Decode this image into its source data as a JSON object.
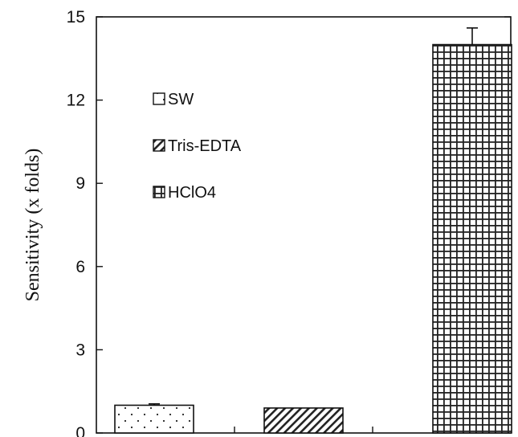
{
  "chart_data": {
    "type": "bar",
    "title": "",
    "xlabel": "",
    "ylabel": "Sensitivity (x folds)",
    "ylim": [
      0,
      15
    ],
    "yticks": [
      0,
      3,
      6,
      9,
      12,
      15
    ],
    "ytick_labels": [
      "0",
      "3",
      "6",
      "9",
      "12",
      "15"
    ],
    "categories": [
      "SW",
      "Tris-EDTA",
      "HClO4"
    ],
    "values": [
      1.0,
      0.9,
      14.0
    ],
    "error_bars": [
      0.05,
      0,
      0.6
    ],
    "legend": {
      "placement": "upper-left",
      "entries": [
        {
          "label": "SW",
          "pattern": "dots"
        },
        {
          "label": "Tris-EDTA",
          "pattern": "diagonal"
        },
        {
          "label": "HClO4",
          "pattern": "grid"
        }
      ]
    },
    "grid": false
  }
}
